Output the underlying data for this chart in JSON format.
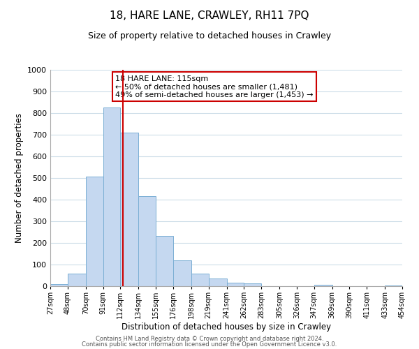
{
  "title": "18, HARE LANE, CRAWLEY, RH11 7PQ",
  "subtitle": "Size of property relative to detached houses in Crawley",
  "xlabel": "Distribution of detached houses by size in Crawley",
  "ylabel": "Number of detached properties",
  "bar_edges": [
    27,
    48,
    70,
    91,
    112,
    134,
    155,
    176,
    198,
    219,
    241,
    262,
    283,
    305,
    326,
    347,
    369,
    390,
    411,
    433,
    454
  ],
  "bar_heights": [
    10,
    57,
    505,
    825,
    710,
    415,
    232,
    118,
    57,
    35,
    15,
    13,
    0,
    0,
    0,
    5,
    0,
    0,
    0,
    3
  ],
  "bar_color": "#c5d8f0",
  "bar_edgecolor": "#7bafd4",
  "vline_x": 115,
  "vline_color": "#cc0000",
  "annotation_line1": "18 HARE LANE: 115sqm",
  "annotation_line2": "← 50% of detached houses are smaller (1,481)",
  "annotation_line3": "49% of semi-detached houses are larger (1,453) →",
  "footer_line1": "Contains HM Land Registry data © Crown copyright and database right 2024.",
  "footer_line2": "Contains public sector information licensed under the Open Government Licence v3.0.",
  "ylim": [
    0,
    1000
  ],
  "tick_labels": [
    "27sqm",
    "48sqm",
    "70sqm",
    "91sqm",
    "112sqm",
    "134sqm",
    "155sqm",
    "176sqm",
    "198sqm",
    "219sqm",
    "241sqm",
    "262sqm",
    "283sqm",
    "305sqm",
    "326sqm",
    "347sqm",
    "369sqm",
    "390sqm",
    "411sqm",
    "433sqm",
    "454sqm"
  ],
  "yticks": [
    0,
    100,
    200,
    300,
    400,
    500,
    600,
    700,
    800,
    900,
    1000
  ],
  "background_color": "#ffffff",
  "grid_color": "#ccdde8"
}
